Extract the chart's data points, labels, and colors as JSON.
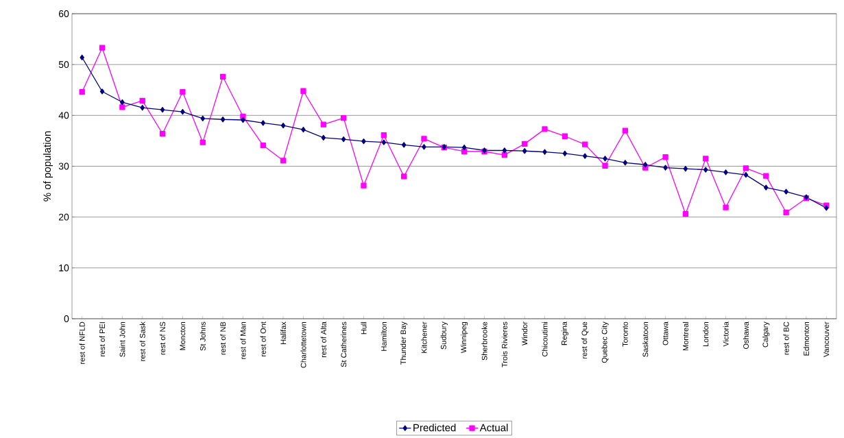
{
  "chart_data": {
    "type": "line",
    "ylabel": "% of population",
    "categories": [
      "rest of NFLD",
      "rest of PEI",
      "Saint John",
      "rest of Sask",
      "rest of NS",
      "Moncton",
      "St Johns",
      "rest of NB",
      "rest of Man",
      "rest of Ont",
      "Halifax",
      "Charlottetown",
      "rest of Alta",
      "St Catherines",
      "Hull",
      "Hamilton",
      "Thunder Bay",
      "Kitchener",
      "Sudbury",
      "Winnipeg",
      "Sherbrooke",
      "Trois Rivieres",
      "Windor",
      "Chicoutimi",
      "Regina",
      "rest of Que",
      "Quebec City",
      "Toronto",
      "Saskatoon",
      "Ottawa",
      "Montreal",
      "London",
      "Victoria",
      "Oshawa",
      "Calgary",
      "rest of BC",
      "Edmonton",
      "Vancouver"
    ],
    "series": [
      {
        "name": "Predicted",
        "color": "#000080",
        "marker": "diamond",
        "values": [
          51.4,
          44.7,
          42.6,
          41.5,
          41.1,
          40.7,
          39.4,
          39.2,
          39.1,
          38.5,
          38.0,
          37.2,
          35.6,
          35.3,
          34.9,
          34.7,
          34.2,
          33.8,
          33.8,
          33.7,
          33.1,
          33.1,
          33.0,
          32.8,
          32.5,
          32.0,
          31.5,
          30.7,
          30.3,
          29.7,
          29.5,
          29.3,
          28.8,
          28.3,
          25.8,
          25.0,
          23.9,
          21.8
        ]
      },
      {
        "name": "Actual",
        "color": "#ff00ff",
        "marker": "square",
        "values": [
          44.6,
          53.3,
          41.6,
          42.9,
          36.4,
          44.6,
          34.7,
          47.6,
          39.8,
          34.1,
          31.1,
          44.8,
          38.2,
          39.5,
          26.2,
          36.1,
          28.0,
          35.4,
          33.7,
          32.9,
          32.9,
          32.2,
          34.4,
          37.3,
          35.9,
          34.3,
          30.1,
          37.0,
          29.7,
          31.8,
          20.6,
          31.5,
          21.9,
          29.6,
          28.1,
          20.9,
          23.7,
          22.3
        ]
      }
    ],
    "ylim": [
      0,
      60
    ],
    "yticks": [
      0,
      10,
      20,
      30,
      40,
      50,
      60
    ],
    "grid": "y",
    "legend": "bottom",
    "line_style": "solid"
  }
}
